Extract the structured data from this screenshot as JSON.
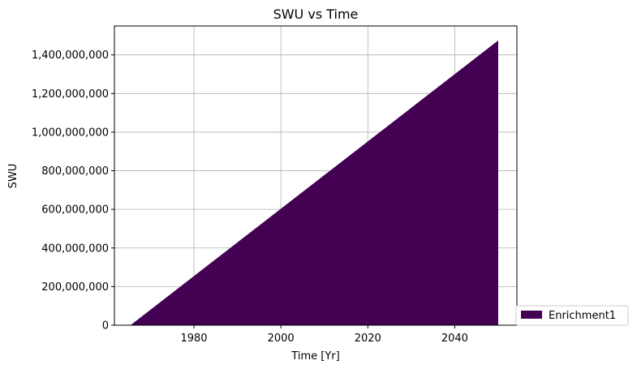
{
  "chart_data": {
    "type": "area",
    "title": "SWU vs Time",
    "xlabel": "Time [Yr]",
    "ylabel": "SWU",
    "xlim": [
      1961.7,
      2054.3
    ],
    "ylim": [
      0,
      1550000000
    ],
    "xticks": [
      1980,
      2000,
      2020,
      2040
    ],
    "xtick_labels": [
      "1980",
      "2000",
      "2020",
      "2040"
    ],
    "yticks": [
      0,
      200000000,
      400000000,
      600000000,
      800000000,
      1000000000,
      1200000000,
      1400000000
    ],
    "ytick_labels": [
      "0",
      "200,000,000",
      "400,000,000",
      "600,000,000",
      "800,000,000",
      "1,000,000,000",
      "1,200,000,000",
      "1,400,000,000"
    ],
    "grid": true,
    "legend_position": "outside lower right",
    "series": [
      {
        "name": "Enrichment1",
        "color": "#440154",
        "x": [
          1965.4,
          2050
        ],
        "y": [
          0,
          1475000000
        ]
      }
    ]
  }
}
